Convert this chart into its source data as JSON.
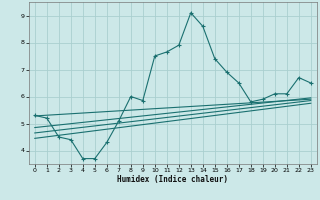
{
  "title": "",
  "xlabel": "Humidex (Indice chaleur)",
  "xlim": [
    -0.5,
    23.5
  ],
  "ylim": [
    3.5,
    9.5
  ],
  "yticks": [
    4,
    5,
    6,
    7,
    8,
    9
  ],
  "xticks": [
    0,
    1,
    2,
    3,
    4,
    5,
    6,
    7,
    8,
    9,
    10,
    11,
    12,
    13,
    14,
    15,
    16,
    17,
    18,
    19,
    20,
    21,
    22,
    23
  ],
  "bg_color": "#cce8e8",
  "grid_color": "#aacfcf",
  "line_color": "#1a7070",
  "main_x": [
    0,
    1,
    2,
    3,
    4,
    5,
    6,
    7,
    8,
    9,
    10,
    11,
    12,
    13,
    14,
    15,
    16,
    17,
    18,
    19,
    20,
    21,
    22,
    23
  ],
  "main_y": [
    5.3,
    5.2,
    4.5,
    4.4,
    3.7,
    3.7,
    4.3,
    5.1,
    6.0,
    5.85,
    7.5,
    7.65,
    7.9,
    9.1,
    8.6,
    7.4,
    6.9,
    6.5,
    5.8,
    5.9,
    6.1,
    6.1,
    6.7,
    6.5
  ],
  "reg_lines": [
    {
      "x0": 0,
      "y0": 5.28,
      "x1": 23,
      "y1": 5.9
    },
    {
      "x0": 0,
      "y0": 4.85,
      "x1": 23,
      "y1": 5.95
    },
    {
      "x0": 0,
      "y0": 4.65,
      "x1": 23,
      "y1": 5.85
    },
    {
      "x0": 0,
      "y0": 4.45,
      "x1": 23,
      "y1": 5.75
    }
  ]
}
